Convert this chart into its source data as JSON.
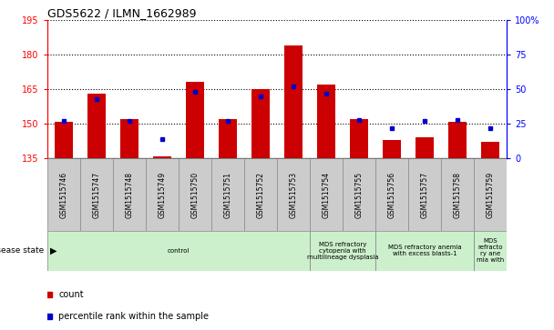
{
  "title": "GDS5622 / ILMN_1662989",
  "samples": [
    "GSM1515746",
    "GSM1515747",
    "GSM1515748",
    "GSM1515749",
    "GSM1515750",
    "GSM1515751",
    "GSM1515752",
    "GSM1515753",
    "GSM1515754",
    "GSM1515755",
    "GSM1515756",
    "GSM1515757",
    "GSM1515758",
    "GSM1515759"
  ],
  "counts": [
    151,
    163,
    152,
    136,
    168,
    152,
    165,
    184,
    167,
    152,
    143,
    144,
    151,
    142
  ],
  "percentiles": [
    27,
    43,
    27,
    14,
    48,
    27,
    45,
    52,
    47,
    28,
    22,
    27,
    28,
    22
  ],
  "ylim_left": [
    135,
    195
  ],
  "ylim_right": [
    0,
    100
  ],
  "yticks_left": [
    135,
    150,
    165,
    180,
    195
  ],
  "yticks_right": [
    0,
    25,
    50,
    75,
    100
  ],
  "bar_color": "#cc0000",
  "marker_color": "#0000cc",
  "sample_box_color": "#cccccc",
  "disease_groups": [
    {
      "label": "control",
      "start": 0,
      "end": 8,
      "color": "#ccf0cc"
    },
    {
      "label": "MDS refractory\ncytopenia with\nmultilineage dysplasia",
      "start": 8,
      "end": 10,
      "color": "#ccf0cc"
    },
    {
      "label": "MDS refractory anemia\nwith excess blasts-1",
      "start": 10,
      "end": 13,
      "color": "#ccf0cc"
    },
    {
      "label": "MDS\nrefracto\nry ane\nmia with",
      "start": 13,
      "end": 14,
      "color": "#ccf0cc"
    }
  ],
  "legend_count_label": "count",
  "legend_percentile_label": "percentile rank within the sample",
  "disease_state_label": "disease state"
}
